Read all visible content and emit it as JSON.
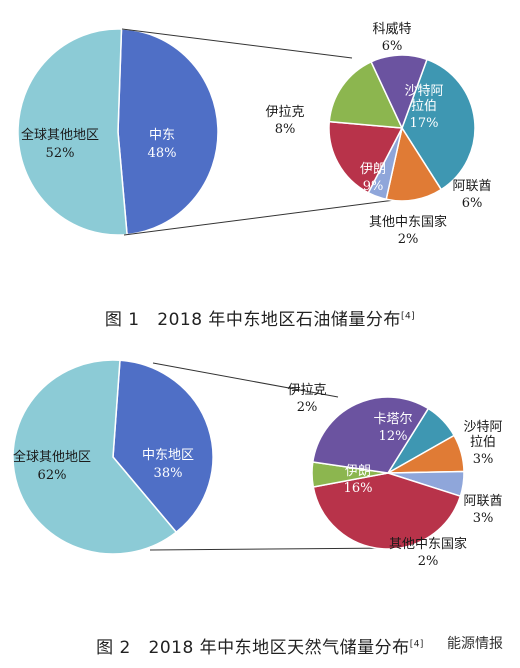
{
  "colors": {
    "light_blue": "#8ccbd6",
    "mid_blue": "#4f6fc6",
    "purple": "#6b53a0",
    "teal": "#3e97b2",
    "orange": "#e07b35",
    "periwinkle": "#8fa6da",
    "crimson": "#b8334a",
    "green": "#8cb64f"
  },
  "figures": [
    {
      "caption": {
        "prefix": "图 1",
        "title": "2018 年中东地区石油储量分布",
        "ref": "[4]"
      },
      "chart_data": {
        "type": "pie",
        "main": {
          "slices": [
            {
              "label": "中东",
              "pct": "48%",
              "value": 48,
              "color": "#4f6fc6"
            },
            {
              "label": "全球其他地区",
              "pct": "52%",
              "value": 52,
              "color": "#8ccbd6"
            }
          ]
        },
        "breakdown": {
          "slices": [
            {
              "label": "沙特阿\n拉伯",
              "pct": "17%",
              "value": 17,
              "color": "#3e97b2"
            },
            {
              "label": "阿联酋",
              "pct": "6%",
              "value": 6,
              "color": "#e07b35"
            },
            {
              "label": "其他中东国家",
              "pct": "2%",
              "value": 2,
              "color": "#8fa6da"
            },
            {
              "label": "伊朗",
              "pct": "9%",
              "value": 9,
              "color": "#b8334a"
            },
            {
              "label": "伊拉克",
              "pct": "8%",
              "value": 8,
              "color": "#8cb64f"
            },
            {
              "label": "科威特",
              "pct": "6%",
              "value": 6,
              "color": "#6b53a0"
            }
          ]
        }
      }
    },
    {
      "caption": {
        "prefix": "图 2",
        "title": "2018 年中东地区天然气储量分布",
        "ref": "[4]"
      },
      "chart_data": {
        "type": "pie",
        "main": {
          "slices": [
            {
              "label": "中东地区",
              "pct": "38%",
              "value": 38,
              "color": "#4f6fc6"
            },
            {
              "label": "全球其他地区",
              "pct": "62%",
              "value": 62,
              "color": "#8ccbd6"
            }
          ]
        },
        "breakdown": {
          "slices": [
            {
              "label": "沙特阿\n拉伯",
              "pct": "3%",
              "value": 3,
              "color": "#3e97b2"
            },
            {
              "label": "阿联酋",
              "pct": "3%",
              "value": 3,
              "color": "#e07b35"
            },
            {
              "label": "其他中东国家",
              "pct": "2%",
              "value": 2,
              "color": "#8fa6da"
            },
            {
              "label": "伊朗",
              "pct": "16%",
              "value": 16,
              "color": "#b8334a"
            },
            {
              "label": "伊拉克",
              "pct": "2%",
              "value": 2,
              "color": "#8cb64f"
            },
            {
              "label": "卡塔尔",
              "pct": "12%",
              "value": 12,
              "color": "#6b53a0"
            }
          ]
        }
      }
    }
  ],
  "watermark": "能源情报"
}
